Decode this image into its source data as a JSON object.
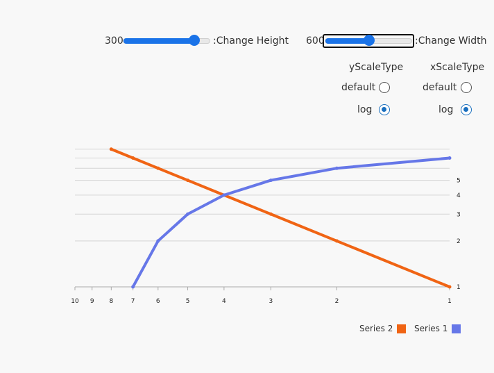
{
  "controls": {
    "height_value": "300",
    "height_label": ":Change Height",
    "height_fraction": 0.85,
    "width_value": "600",
    "width_label": ":Change Width",
    "width_fraction": 0.5
  },
  "scale_options": {
    "y": {
      "title": "yScaleType",
      "default_label": "default",
      "log_label": "log",
      "selected": "log"
    },
    "x": {
      "title": "xScaleType",
      "default_label": "default",
      "log_label": "log",
      "selected": "log"
    }
  },
  "colors": {
    "accent": "#1a73e8",
    "series2": "#f06414",
    "series1": "#6677e8"
  },
  "chart_data": {
    "type": "line",
    "x_scale": "log",
    "y_scale": "log",
    "x_reversed": true,
    "y_axis_position": "right",
    "xlim": [
      1,
      10
    ],
    "ylim": [
      1,
      8.5
    ],
    "x_ticks": [
      "10",
      "9",
      "8",
      "7",
      "6",
      "5",
      "4",
      "3",
      "2",
      "1"
    ],
    "y_ticks": [
      "1",
      "2",
      "3",
      "4",
      "5"
    ],
    "grid": true,
    "legend_position": "bottom-right",
    "series": [
      {
        "name": "Series 2",
        "color": "#f06414",
        "x": [
          1,
          2,
          3,
          4,
          5,
          6,
          7,
          8
        ],
        "y": [
          1,
          2,
          3,
          4,
          5,
          6,
          7,
          8
        ]
      },
      {
        "name": "Series 1",
        "color": "#6677e8",
        "x": [
          1,
          2,
          3,
          4,
          5,
          6,
          7
        ],
        "y": [
          7,
          6,
          5,
          4,
          3,
          2,
          1
        ]
      }
    ],
    "legend": [
      "Series 2",
      "Series 1"
    ]
  }
}
